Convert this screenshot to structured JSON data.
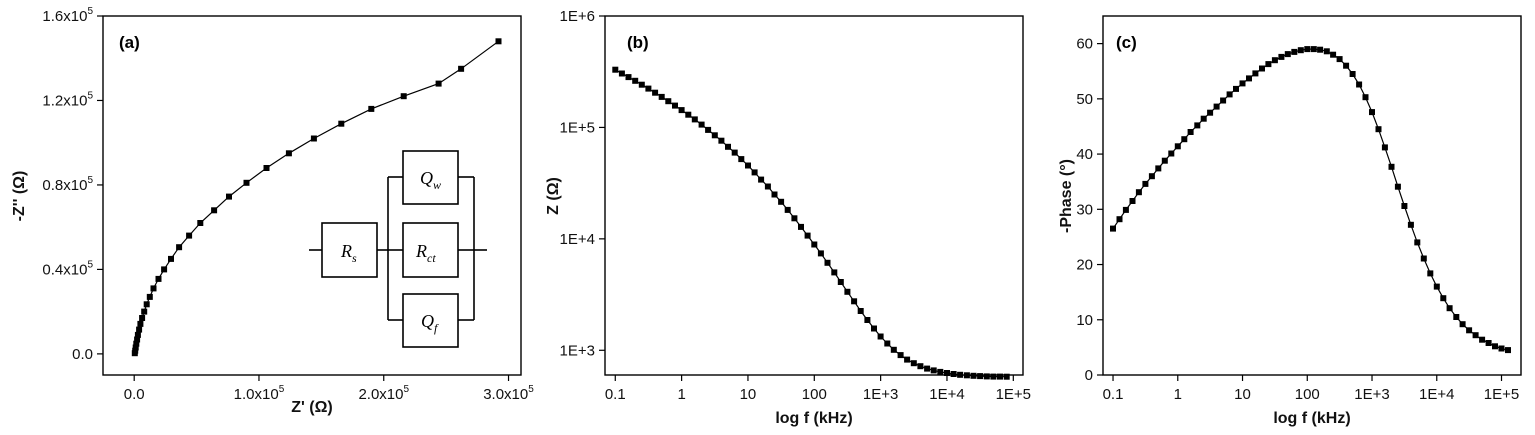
{
  "chart_data": [
    {
      "type": "scatter",
      "panel_label": "(a)",
      "xlabel": "Z' (Ω)",
      "ylabel": "-Z'' (Ω)",
      "xlim": [
        -25000,
        310000
      ],
      "ylim": [
        -10000,
        160000
      ],
      "x_ticks": [
        {
          "value": 0,
          "base": "0.0",
          "exp": ""
        },
        {
          "value": 100000,
          "base": "1.0x10",
          "exp": "5"
        },
        {
          "value": 200000,
          "base": "2.0x10",
          "exp": "5"
        },
        {
          "value": 300000,
          "base": "3.0x10",
          "exp": "5"
        }
      ],
      "y_ticks": [
        {
          "value": 0,
          "base": "0.0",
          "exp": ""
        },
        {
          "value": 40000,
          "base": "0.4x10",
          "exp": "5"
        },
        {
          "value": 80000,
          "base": "0.8x10",
          "exp": "5"
        },
        {
          "value": 120000,
          "base": "1.2x10",
          "exp": "5"
        },
        {
          "value": 160000,
          "base": "1.6x10",
          "exp": "5"
        }
      ],
      "series": [
        {
          "marker": "square",
          "x": [
            500,
            800,
            1200,
            1700,
            2300,
            3000,
            3900,
            5000,
            6300,
            8000,
            10000,
            12500,
            15500,
            19500,
            24000,
            29500,
            36000,
            44000,
            53000,
            64000,
            76000,
            90000,
            106000,
            124000,
            144000,
            166000,
            190000,
            216000,
            244000,
            262000,
            292000
          ],
          "y": [
            300,
            1500,
            3000,
            4800,
            6800,
            9000,
            11500,
            14200,
            17000,
            20000,
            23500,
            27000,
            31000,
            35500,
            40000,
            45000,
            50500,
            56000,
            62000,
            68000,
            74500,
            81000,
            88000,
            95000,
            102000,
            109000,
            116000,
            122000,
            128000,
            135000,
            148000
          ]
        }
      ],
      "circuit": {
        "rs": {
          "main": "R",
          "sub": "s"
        },
        "qw": {
          "main": "Q",
          "sub": "w"
        },
        "rct": {
          "main": "R",
          "sub": "ct"
        },
        "qf": {
          "main": "Q",
          "sub": "f"
        }
      }
    },
    {
      "type": "scatter",
      "panel_label": "(b)",
      "xlabel": "log f (kHz)",
      "ylabel": "Z (Ω)",
      "x_scale": "log",
      "y_scale": "log",
      "xlim": [
        0.07,
        140000
      ],
      "ylim": [
        600,
        1000000
      ],
      "x_ticks": [
        {
          "value": 0.1,
          "label": "0.1"
        },
        {
          "value": 1,
          "label": "1"
        },
        {
          "value": 10,
          "label": "10"
        },
        {
          "value": 100,
          "label": "100"
        },
        {
          "value": 1000,
          "label": "1E+3"
        },
        {
          "value": 10000,
          "label": "1E+4"
        },
        {
          "value": 100000,
          "label": "1E+5"
        }
      ],
      "y_ticks": [
        {
          "value": 1000,
          "label": "1E+3"
        },
        {
          "value": 10000,
          "label": "1E+4"
        },
        {
          "value": 100000,
          "label": "1E+5"
        },
        {
          "value": 1000000,
          "label": "1E+6"
        }
      ],
      "series": [
        {
          "marker": "square",
          "x": [
            0.1,
            0.126,
            0.158,
            0.2,
            0.251,
            0.316,
            0.398,
            0.501,
            0.631,
            0.794,
            1,
            1.26,
            1.58,
            2,
            2.51,
            3.16,
            3.98,
            5.01,
            6.31,
            7.94,
            10,
            12.6,
            15.8,
            20,
            25.1,
            31.6,
            39.8,
            50.1,
            63.1,
            79.4,
            100,
            126,
            158,
            200,
            251,
            316,
            398,
            501,
            631,
            794,
            1000,
            1260,
            1580,
            2000,
            2510,
            3160,
            3980,
            5010,
            6310,
            7940,
            10000,
            12600,
            15800,
            20000,
            25100,
            31600,
            39800,
            50100,
            63100,
            79400
          ],
          "y": [
            330000,
            305000,
            283000,
            262000,
            242000,
            223000,
            205000,
            188000,
            172000,
            157000,
            143000,
            130000,
            118000,
            106000,
            95000,
            85000,
            76000,
            67000,
            59500,
            52000,
            45500,
            39500,
            34000,
            29500,
            25000,
            21500,
            18200,
            15300,
            12800,
            10700,
            8900,
            7400,
            6100,
            5000,
            4100,
            3350,
            2750,
            2250,
            1870,
            1570,
            1330,
            1150,
            1010,
            905,
            825,
            765,
            720,
            685,
            660,
            640,
            625,
            612,
            603,
            596,
            590,
            586,
            583,
            581,
            580,
            579
          ]
        }
      ]
    },
    {
      "type": "scatter",
      "panel_label": "(c)",
      "xlabel": "log f (kHz)",
      "ylabel": "-Phase (°)",
      "x_scale": "log",
      "xlim": [
        0.07,
        200000
      ],
      "ylim": [
        0,
        65
      ],
      "x_ticks": [
        {
          "value": 0.1,
          "label": "0.1"
        },
        {
          "value": 1,
          "label": "1"
        },
        {
          "value": 10,
          "label": "10"
        },
        {
          "value": 100,
          "label": "100"
        },
        {
          "value": 1000,
          "label": "1E+3"
        },
        {
          "value": 10000,
          "label": "1E+4"
        },
        {
          "value": 100000,
          "label": "1E+5"
        }
      ],
      "y_ticks": [
        {
          "value": 0,
          "label": "0"
        },
        {
          "value": 10,
          "label": "10"
        },
        {
          "value": 20,
          "label": "20"
        },
        {
          "value": 30,
          "label": "30"
        },
        {
          "value": 40,
          "label": "40"
        },
        {
          "value": 50,
          "label": "50"
        },
        {
          "value": 60,
          "label": "60"
        }
      ],
      "series": [
        {
          "marker": "square",
          "x": [
            0.1,
            0.126,
            0.158,
            0.2,
            0.251,
            0.316,
            0.398,
            0.501,
            0.631,
            0.794,
            1,
            1.26,
            1.58,
            2,
            2.51,
            3.16,
            3.98,
            5.01,
            6.31,
            7.94,
            10,
            12.6,
            15.8,
            20,
            25.1,
            31.6,
            39.8,
            50.1,
            63.1,
            79.4,
            100,
            126,
            158,
            200,
            251,
            316,
            398,
            501,
            631,
            794,
            1000,
            1260,
            1580,
            2000,
            2510,
            3160,
            3980,
            5010,
            6310,
            7940,
            10000,
            12600,
            15800,
            20000,
            25100,
            31600,
            39800,
            50100,
            63100,
            79400,
            100000,
            126000
          ],
          "y": [
            26.5,
            28.2,
            29.9,
            31.5,
            33.1,
            34.6,
            36.0,
            37.4,
            38.8,
            40.1,
            41.4,
            42.7,
            44.0,
            45.2,
            46.4,
            47.5,
            48.6,
            49.7,
            50.8,
            51.8,
            52.8,
            53.7,
            54.6,
            55.5,
            56.3,
            57.0,
            57.6,
            58.1,
            58.5,
            58.8,
            59.0,
            59.0,
            58.9,
            58.6,
            58.0,
            57.2,
            56.0,
            54.5,
            52.6,
            50.3,
            47.6,
            44.5,
            41.2,
            37.7,
            34.1,
            30.6,
            27.2,
            24.0,
            21.1,
            18.4,
            16.0,
            13.9,
            12.1,
            10.5,
            9.2,
            8.1,
            7.2,
            6.4,
            5.8,
            5.2,
            4.8,
            4.5
          ]
        }
      ]
    }
  ]
}
